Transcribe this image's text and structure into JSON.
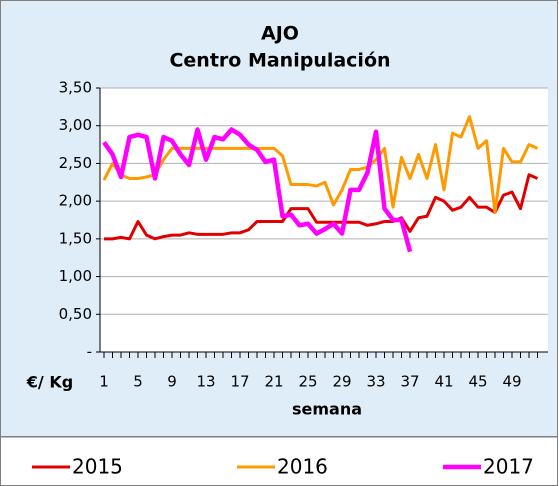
{
  "chart_data": {
    "type": "line",
    "title": "AJO",
    "subtitle": "Centro Manipulación",
    "xlabel": "semana",
    "ylabel": "€/ Kg",
    "categories": [
      "1",
      null,
      null,
      null,
      "5",
      null,
      null,
      null,
      "9",
      null,
      null,
      null,
      "13",
      null,
      null,
      null,
      "17",
      null,
      null,
      null,
      "21",
      null,
      null,
      null,
      "25",
      null,
      null,
      null,
      "29",
      null,
      null,
      null,
      "33",
      null,
      null,
      null,
      "37",
      null,
      null,
      null,
      "41",
      null,
      null,
      null,
      "45",
      null,
      null,
      null,
      "49",
      null,
      null,
      null
    ],
    "series": [
      {
        "name": "2015",
        "color": "#e00000",
        "values": [
          1.5,
          1.5,
          1.52,
          1.5,
          1.73,
          1.55,
          1.5,
          1.53,
          1.55,
          1.55,
          1.58,
          1.56,
          1.56,
          1.56,
          1.56,
          1.58,
          1.58,
          1.62,
          1.73,
          1.73,
          1.73,
          1.73,
          1.9,
          1.9,
          1.9,
          1.72,
          1.72,
          1.72,
          1.72,
          1.72,
          1.72,
          1.68,
          1.7,
          1.73,
          1.73,
          1.78,
          1.6,
          1.78,
          1.8,
          2.05,
          2.0,
          1.88,
          1.92,
          2.05,
          1.92,
          1.92,
          1.85,
          2.08,
          2.12,
          1.9,
          2.35,
          2.3
        ]
      },
      {
        "name": "2016",
        "color": "#ff9900",
        "values": [
          2.28,
          2.5,
          2.35,
          2.3,
          2.3,
          2.32,
          2.35,
          2.55,
          2.7,
          2.7,
          2.7,
          2.7,
          2.7,
          2.7,
          2.7,
          2.7,
          2.7,
          2.7,
          2.7,
          2.7,
          2.7,
          2.6,
          2.22,
          2.22,
          2.22,
          2.2,
          2.25,
          1.95,
          2.15,
          2.42,
          2.42,
          2.45,
          2.55,
          2.7,
          1.92,
          2.58,
          2.3,
          2.62,
          2.3,
          2.75,
          2.15,
          2.9,
          2.85,
          3.12,
          2.7,
          2.8,
          1.85,
          2.7,
          2.52,
          2.52,
          2.75,
          2.7
        ]
      },
      {
        "name": "2017",
        "color": "#ff00ff",
        "values": [
          2.78,
          2.62,
          2.32,
          2.85,
          2.88,
          2.85,
          2.3,
          2.85,
          2.8,
          2.62,
          2.48,
          2.95,
          2.55,
          2.85,
          2.82,
          2.95,
          2.88,
          2.75,
          2.68,
          2.52,
          2.55,
          1.8,
          1.82,
          1.68,
          1.7,
          1.57,
          1.63,
          1.7,
          1.57,
          2.15,
          2.15,
          2.38,
          2.92,
          1.9,
          1.75,
          1.75,
          1.33,
          null,
          null,
          null,
          null,
          null,
          null,
          null,
          null,
          null,
          null,
          null,
          null,
          null,
          null,
          null
        ]
      }
    ],
    "ylim": [
      0,
      3.5
    ],
    "yticks": [
      {
        "value": 0,
        "label": "-"
      },
      {
        "value": 0.5,
        "label": "0,50"
      },
      {
        "value": 1,
        "label": "1,00"
      },
      {
        "value": 1.5,
        "label": "1,50"
      },
      {
        "value": 2,
        "label": "2,00"
      },
      {
        "value": 2.5,
        "label": "2,50"
      },
      {
        "value": 3,
        "label": "3,00"
      },
      {
        "value": 3.5,
        "label": "3,50"
      }
    ],
    "grid": true,
    "legend": "bottom"
  }
}
